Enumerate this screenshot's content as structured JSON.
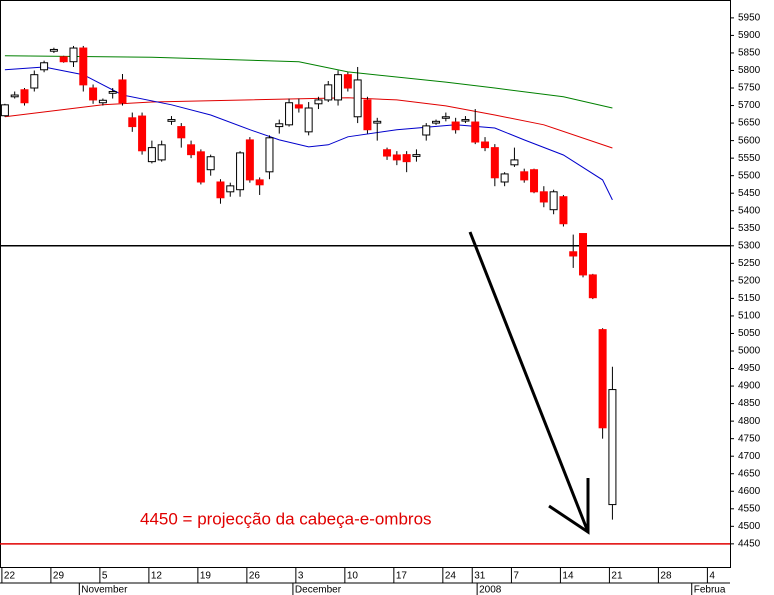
{
  "chart_data": {
    "type": "candlestick",
    "x": [
      0,
      1,
      2,
      3,
      4,
      5,
      6,
      7,
      8,
      9,
      10,
      11,
      12,
      13,
      14,
      15,
      16,
      17,
      18,
      19,
      20,
      21,
      22,
      23,
      24,
      25,
      26,
      27,
      28,
      29,
      30,
      31,
      32,
      33,
      34,
      35,
      36,
      37,
      38,
      39,
      40,
      41,
      42,
      43,
      44,
      45,
      46,
      47,
      48,
      49,
      50,
      51,
      52,
      53,
      54,
      55,
      56,
      57,
      58,
      59,
      60,
      61,
      62
    ],
    "open": [
      5671,
      5725,
      5745,
      5750,
      5802,
      5855,
      5839,
      5825,
      5864,
      5750,
      5708,
      5735,
      5773,
      5665,
      5670,
      5540,
      5545,
      5655,
      5640,
      5588,
      5568,
      5517,
      5482,
      5454,
      5460,
      5602,
      5488,
      5511,
      5640,
      5645,
      5702,
      5625,
      5705,
      5716,
      5716,
      5788,
      5668,
      5716,
      5650,
      5574,
      5559,
      5560,
      5555,
      5616,
      5650,
      5665,
      5653,
      5656,
      5653,
      5596,
      5580,
      5482,
      5531,
      5511,
      5517,
      5454,
      5403,
      5440,
      5283,
      5335,
      5217,
      5061,
      4562
    ],
    "high": [
      5705,
      5740,
      5750,
      5800,
      5828,
      5865,
      5842,
      5870,
      5870,
      5760,
      5720,
      5750,
      5790,
      5680,
      5680,
      5600,
      5600,
      5670,
      5650,
      5600,
      5575,
      5560,
      5490,
      5480,
      5570,
      5610,
      5495,
      5615,
      5660,
      5720,
      5720,
      5710,
      5725,
      5770,
      5800,
      5795,
      5810,
      5725,
      5665,
      5580,
      5570,
      5570,
      5575,
      5650,
      5660,
      5680,
      5665,
      5670,
      5690,
      5610,
      5590,
      5510,
      5580,
      5520,
      5520,
      5470,
      5460,
      5445,
      5332,
      5335,
      5220,
      5065,
      4955
    ],
    "low": [
      5668,
      5720,
      5700,
      5740,
      5795,
      5850,
      5822,
      5810,
      5740,
      5705,
      5700,
      5720,
      5700,
      5625,
      5560,
      5535,
      5540,
      5645,
      5580,
      5550,
      5475,
      5500,
      5420,
      5440,
      5440,
      5480,
      5445,
      5490,
      5620,
      5640,
      5680,
      5615,
      5690,
      5710,
      5700,
      5740,
      5650,
      5620,
      5600,
      5545,
      5530,
      5510,
      5540,
      5600,
      5645,
      5655,
      5620,
      5650,
      5590,
      5570,
      5470,
      5470,
      5525,
      5480,
      5450,
      5410,
      5390,
      5355,
      5237,
      5210,
      5148,
      4750,
      4519
    ],
    "close": [
      5702,
      5730,
      5708,
      5788,
      5822,
      5860,
      5825,
      5864,
      5759,
      5716,
      5715,
      5740,
      5708,
      5640,
      5571,
      5580,
      5588,
      5660,
      5608,
      5560,
      5482,
      5554,
      5437,
      5471,
      5565,
      5488,
      5474,
      5608,
      5648,
      5708,
      5693,
      5693,
      5716,
      5759,
      5788,
      5750,
      5773,
      5631,
      5655,
      5556,
      5545,
      5540,
      5560,
      5642,
      5655,
      5668,
      5631,
      5660,
      5596,
      5580,
      5494,
      5505,
      5545,
      5488,
      5454,
      5425,
      5454,
      5363,
      5271,
      5217,
      5152,
      4781,
      4890
    ],
    "up_color": "#ffffff",
    "down_color": "#ff0000",
    "lines": [
      {
        "color": "#008000",
        "x": [
          0,
          15,
          30,
          35,
          45,
          50,
          57,
          62
        ],
        "values": [
          5842,
          5838,
          5825,
          5796,
          5767,
          5750,
          5725,
          5693
        ]
      },
      {
        "color": "#e00000",
        "x": [
          0,
          10,
          15,
          25,
          35,
          40,
          45,
          50,
          55,
          62
        ],
        "values": [
          5668,
          5702,
          5710,
          5716,
          5722,
          5716,
          5699,
          5673,
          5645,
          5579
        ]
      },
      {
        "color": "#0000cc",
        "x": [
          0,
          4,
          8,
          12,
          17,
          21,
          25,
          28,
          31,
          33,
          35,
          40,
          46,
          50,
          53,
          57,
          61,
          62
        ],
        "values": [
          5802,
          5810,
          5788,
          5730,
          5702,
          5673,
          5631,
          5602,
          5582,
          5588,
          5611,
          5631,
          5645,
          5636,
          5602,
          5559,
          5488,
          5431
        ]
      }
    ],
    "hlines": [
      {
        "value": 5300,
        "color": "#000000"
      },
      {
        "value": 4450,
        "color": "#e00000"
      }
    ],
    "annotation": "4450 = projecção da cabeça-e-ombros",
    "xlim": [
      -0.5,
      74
    ],
    "xticks": [
      {
        "value": 0,
        "label": "22"
      },
      {
        "value": 5,
        "label": "29"
      },
      {
        "value": 10,
        "label": "5"
      },
      {
        "value": 15,
        "label": "12"
      },
      {
        "value": 20,
        "label": "19"
      },
      {
        "value": 25,
        "label": "26"
      },
      {
        "value": 30,
        "label": "3"
      },
      {
        "value": 35,
        "label": "10"
      },
      {
        "value": 40,
        "label": "17"
      },
      {
        "value": 45,
        "label": "24"
      },
      {
        "value": 48,
        "label": "31"
      },
      {
        "value": 52,
        "label": "7"
      },
      {
        "value": 57,
        "label": "14"
      },
      {
        "value": 62,
        "label": "21"
      },
      {
        "value": 67,
        "label": "28"
      },
      {
        "value": 72,
        "label": "4"
      }
    ],
    "months": [
      {
        "value": 7.9,
        "label": "November"
      },
      {
        "value": 29.7,
        "label": "December"
      },
      {
        "value": 48.5,
        "label": "2008"
      },
      {
        "value": 70.4,
        "label": "Februa"
      }
    ],
    "ylim": [
      4384,
      6001
    ],
    "yticks": [
      4450,
      4500,
      4550,
      4600,
      4650,
      4700,
      4750,
      4800,
      4850,
      4900,
      4950,
      5000,
      5050,
      5100,
      5150,
      5200,
      5250,
      5300,
      5350,
      5400,
      5450,
      5500,
      5550,
      5600,
      5650,
      5700,
      5750,
      5800,
      5850,
      5900,
      5950
    ]
  }
}
